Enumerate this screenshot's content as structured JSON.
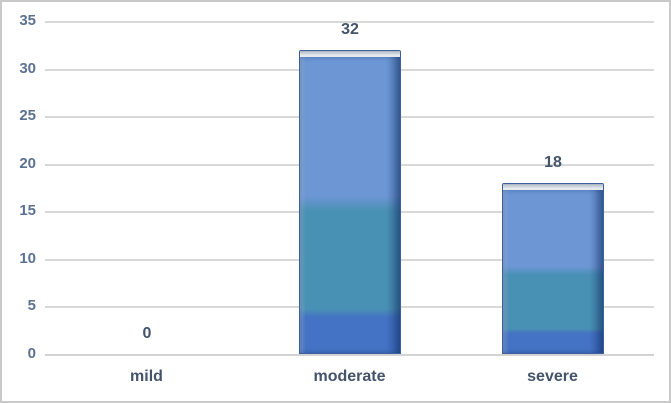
{
  "chart_data": {
    "type": "bar",
    "title": "",
    "xlabel": "",
    "ylabel": "",
    "categories": [
      "mild",
      "moderate",
      "severe"
    ],
    "values": [
      0,
      32,
      18
    ],
    "data_labels": [
      "0",
      "32",
      "18"
    ],
    "ylim": [
      0,
      35
    ],
    "ytick_interval": 5,
    "yticks": [
      "0",
      "5",
      "10",
      "15",
      "20",
      "25",
      "30",
      "35"
    ],
    "grid": "horizontal",
    "legend_position": "none",
    "bar_style": "glossy-3d-gradient"
  },
  "colors": {
    "bar_gradient_top": "#6C96D4",
    "bar_gradient_middle": "#4991B4",
    "bar_gradient_bottom": "#4472C4",
    "bar_border": "#3E5F9E",
    "bar_cap_silver": "#D5DBE2",
    "gridline": "#D9D9D9",
    "axis_line": "#D3D3D3",
    "tick_label": "#5C7293",
    "category_label": "#44546A",
    "data_label": "#44546A",
    "frame_border": "#C9C9C9",
    "background": "#FFFFFF"
  }
}
